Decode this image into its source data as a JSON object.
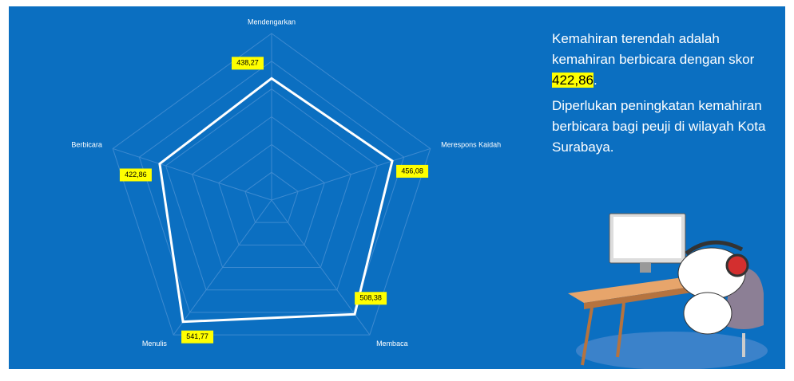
{
  "chart_data": {
    "type": "radar",
    "categories": [
      "Mendengarkan",
      "Merespons Kaidah",
      "Membaca",
      "Menulis",
      "Berbicara"
    ],
    "values": [
      438.27,
      456.08,
      508.38,
      541.77,
      422.86
    ],
    "value_labels": [
      "438,27",
      "456,08",
      "508,38",
      "541,77",
      "422,86"
    ],
    "color": "#ffffff",
    "ylim": [
      0,
      600
    ],
    "yticks": [
      100,
      200,
      300,
      400,
      500,
      600
    ],
    "grid": true,
    "tick_labels": false
  },
  "note": {
    "text1": "Kemahiran terendah adalah kemahiran berbicara dengan skor",
    "highlight": "422,86",
    "end": ".",
    "text2": "Diperlukan peningkatan kemahiran berbicara bagi peuji di wilayah Kota Surabaya."
  }
}
